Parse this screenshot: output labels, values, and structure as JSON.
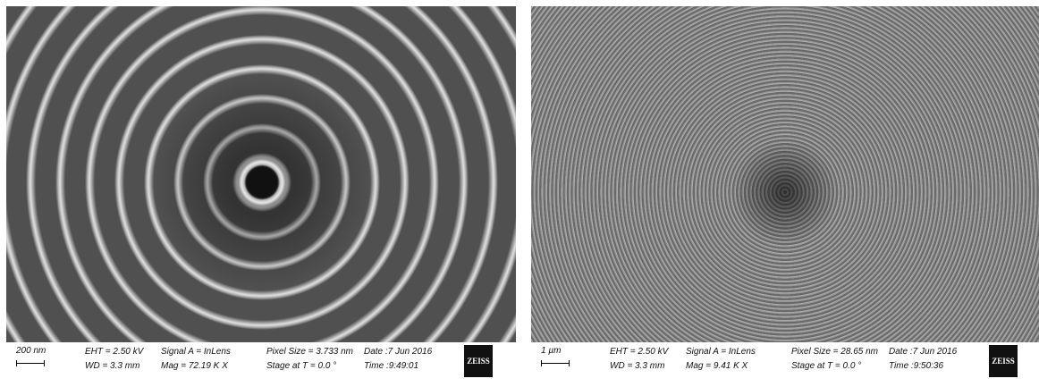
{
  "panels": [
    {
      "scale_bar": "200 nm",
      "eht": "EHT = 2.50 kV",
      "wd": "WD = 3.3 mm",
      "signal": "Signal A = InLens",
      "mag": "Mag = 72.19 K X",
      "pixel_size": "Pixel Size = 3.733 nm",
      "stage": "Stage at T = 0.0 °",
      "date": "Date :7 Jun 2016",
      "time": "Time :9:49:01",
      "logo": "ZEISS"
    },
    {
      "scale_bar": "1 µm",
      "eht": "EHT = 2.50 kV",
      "wd": "WD = 3.3 mm",
      "signal": "Signal A = InLens",
      "mag": "Mag = 9.41 K X",
      "pixel_size": "Pixel Size = 28.65 nm",
      "stage": "Stage at T = 0.0 °",
      "date": "Date :7 Jun 2016",
      "time": "Time :9:50:36",
      "logo": "ZEISS"
    }
  ]
}
